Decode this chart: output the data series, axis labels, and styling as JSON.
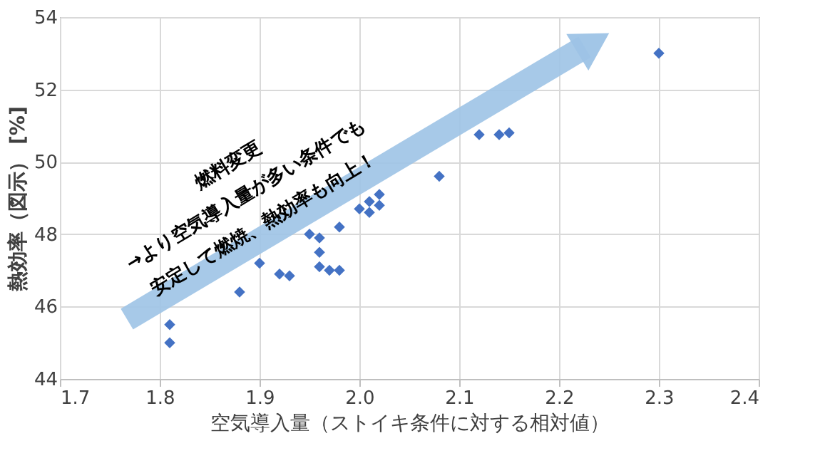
{
  "chart_data": {
    "type": "scatter",
    "xlabel": "空気導入量（ストイキ条件に対する相対値）",
    "ylabel": "熱効率（図示） [%]",
    "x": [
      1.81,
      1.81,
      1.88,
      1.9,
      1.92,
      1.93,
      1.95,
      1.96,
      1.96,
      1.96,
      1.97,
      1.98,
      1.98,
      2.0,
      2.01,
      2.01,
      2.02,
      2.02,
      2.08,
      2.12,
      2.14,
      2.15,
      2.3
    ],
    "series": [
      {
        "color": "#4472c4",
        "values": [
          45.5,
          45.0,
          46.4,
          47.2,
          46.9,
          46.85,
          48.0,
          47.9,
          47.5,
          47.1,
          47.0,
          47.0,
          48.2,
          48.7,
          48.6,
          48.9,
          48.8,
          49.1,
          49.6,
          50.75,
          50.75,
          50.8,
          53.0
        ]
      }
    ],
    "xlim": [
      1.7,
      2.4
    ],
    "xticks": [
      1.7,
      1.8,
      1.9,
      {
        "value": 2,
        "label": "2.0"
      },
      2.1,
      2.2,
      2.3,
      {
        "value": 2.4,
        "label": "2.4"
      }
    ],
    "ylim": [
      44,
      54
    ],
    "yticks": [
      44,
      46,
      48,
      50,
      52,
      54
    ],
    "grid": true,
    "marker": "diamond",
    "annotations": [
      "燃料変更\n→より空気導入量が多い条件でも\n安定して燃焼、熱効率も向上！"
    ]
  }
}
